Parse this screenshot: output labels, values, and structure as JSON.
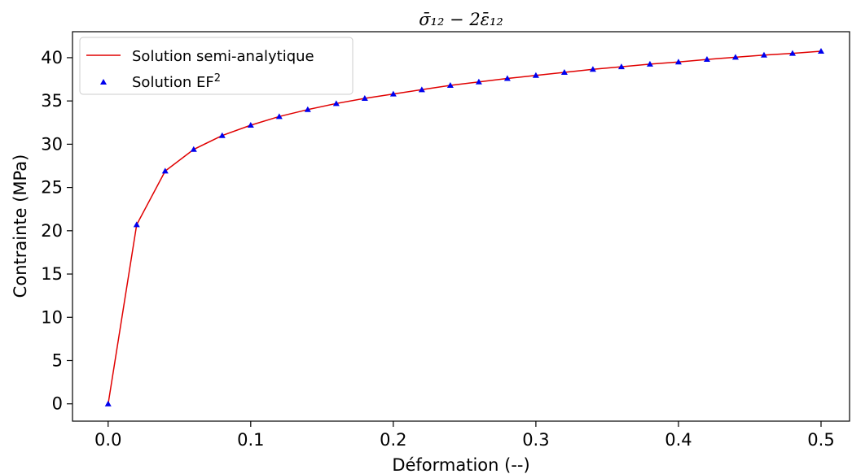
{
  "chart_data": {
    "type": "line",
    "title": "σ̄₁₂ − 2ε̄₁₂",
    "xlabel": "Déformation (--)",
    "ylabel": "Contrainte (MPa)",
    "xlim": [
      -0.025,
      0.52
    ],
    "ylim": [
      -2,
      43
    ],
    "xticks": [
      0.0,
      0.1,
      0.2,
      0.3,
      0.4,
      0.5
    ],
    "xtick_labels": [
      "0.0",
      "0.1",
      "0.2",
      "0.3",
      "0.4",
      "0.5"
    ],
    "yticks": [
      0,
      5,
      10,
      15,
      20,
      25,
      30,
      35,
      40
    ],
    "ytick_labels": [
      "0",
      "5",
      "10",
      "15",
      "20",
      "25",
      "30",
      "35",
      "40"
    ],
    "grid": false,
    "legend_position": "top-left",
    "x": [
      0.0,
      0.02,
      0.04,
      0.06,
      0.08,
      0.1,
      0.12,
      0.14,
      0.16,
      0.18,
      0.2,
      0.22,
      0.24,
      0.26,
      0.28,
      0.3,
      0.32,
      0.34,
      0.36,
      0.38,
      0.4,
      0.42,
      0.44,
      0.46,
      0.48,
      0.5
    ],
    "series": [
      {
        "name": "Solution semi-analytique",
        "kind": "line",
        "color": "#e00000",
        "values": [
          0.0,
          20.7,
          26.9,
          29.4,
          31.0,
          32.2,
          33.2,
          34.0,
          34.7,
          35.3,
          35.8,
          36.3,
          36.8,
          37.2,
          37.6,
          37.95,
          38.3,
          38.65,
          38.95,
          39.25,
          39.5,
          39.8,
          40.05,
          40.3,
          40.5,
          40.75
        ]
      },
      {
        "name": "Solution EF",
        "name_sup": "2",
        "kind": "scatter",
        "marker": "triangle",
        "color": "#0000ee",
        "values": [
          0.0,
          20.7,
          26.9,
          29.4,
          31.0,
          32.2,
          33.2,
          34.0,
          34.7,
          35.3,
          35.8,
          36.3,
          36.8,
          37.2,
          37.6,
          37.95,
          38.3,
          38.65,
          38.95,
          39.25,
          39.5,
          39.8,
          40.05,
          40.3,
          40.5,
          40.75
        ]
      }
    ]
  }
}
